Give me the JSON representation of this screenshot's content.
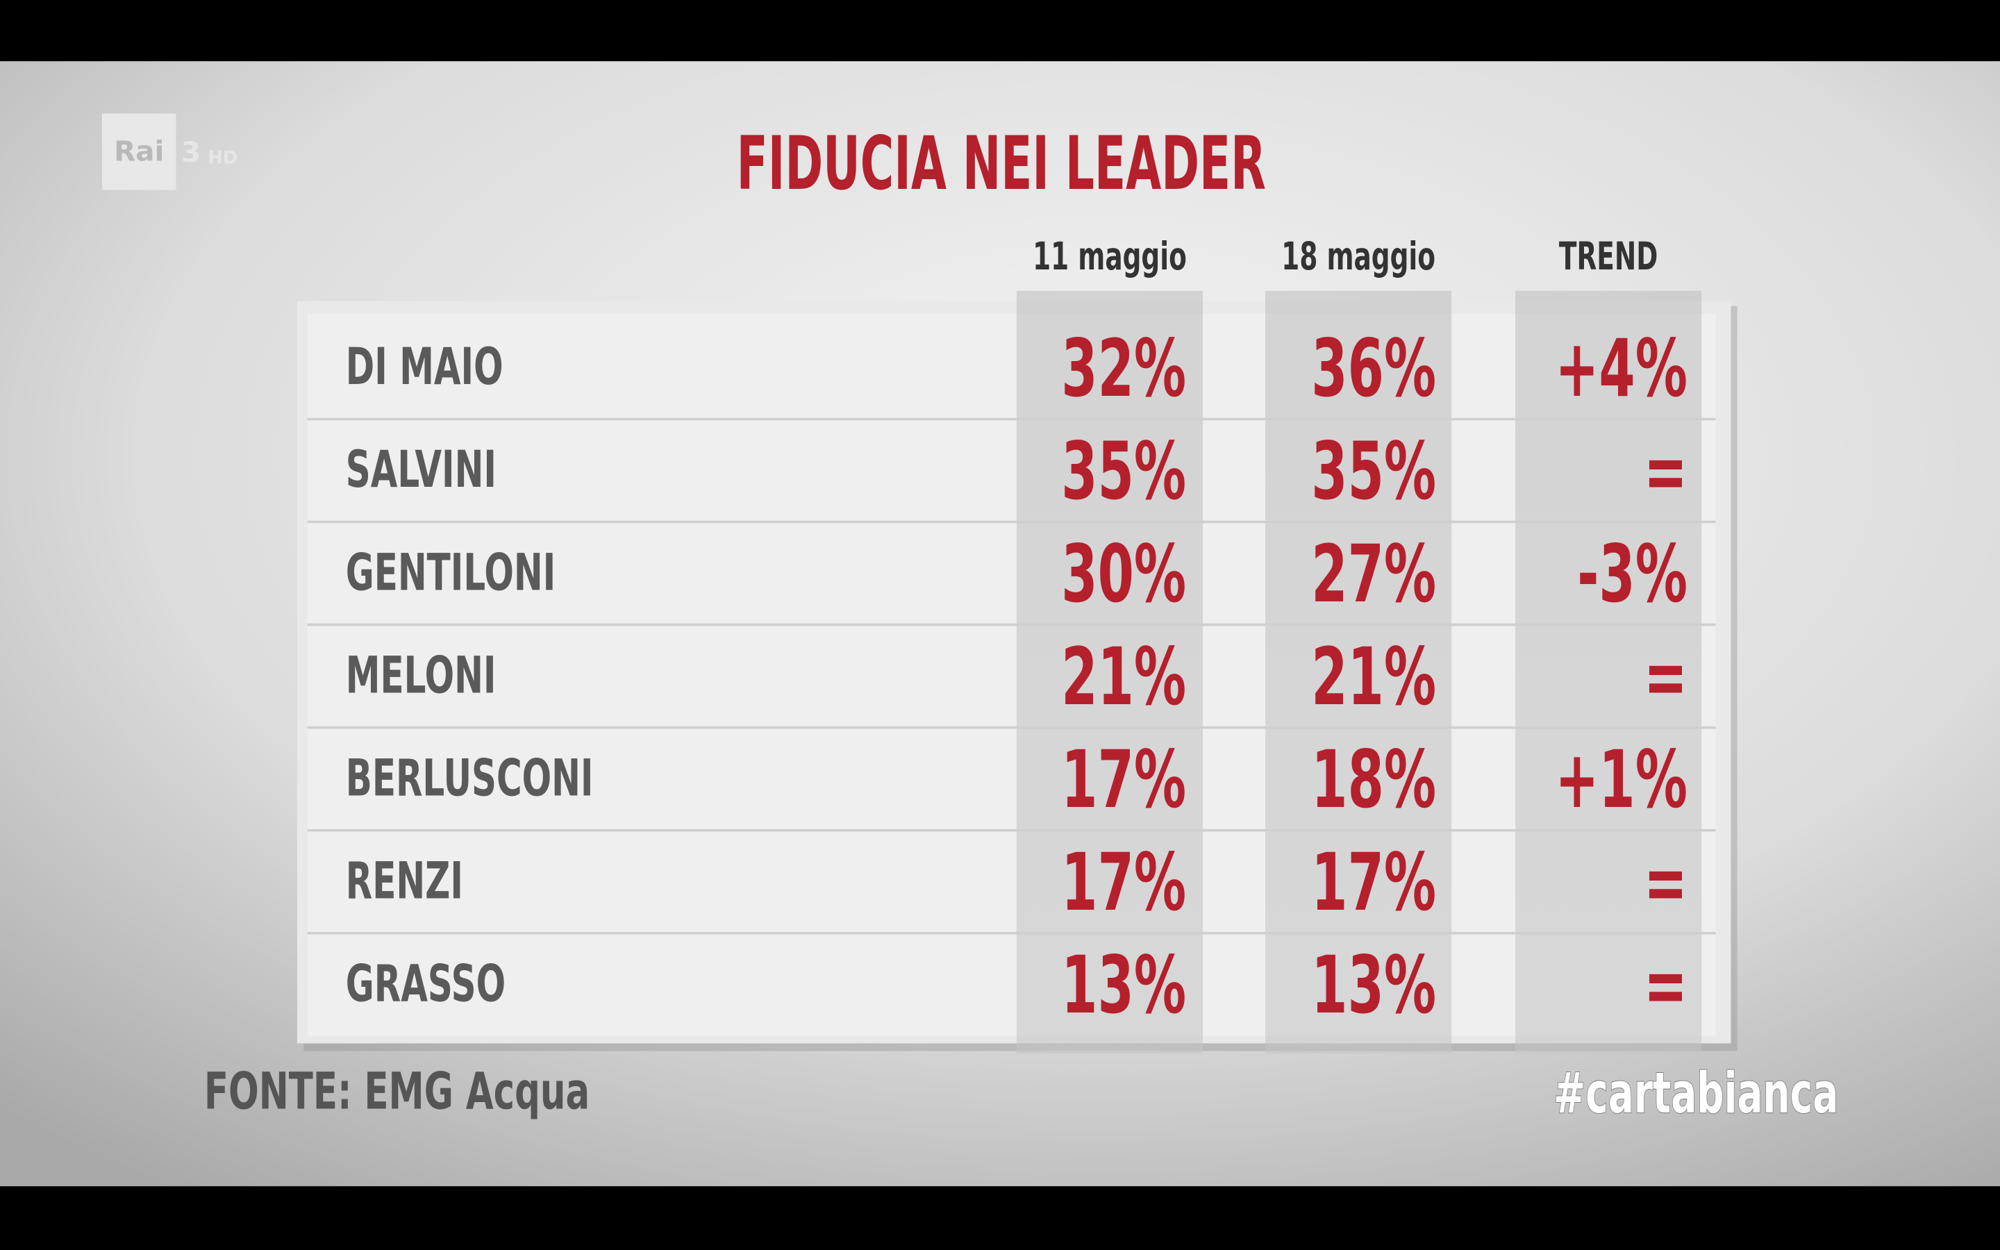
{
  "logo": {
    "name": "Rai",
    "channel": "3",
    "quality": "HD"
  },
  "title": "FIDUCIA NEI LEADER",
  "table": {
    "columns": [
      "11 maggio",
      "18 maggio",
      "TREND"
    ],
    "rows": [
      [
        "DI MAIO",
        "32%",
        "36%",
        "+4%"
      ],
      [
        "SALVINI",
        "35%",
        "35%",
        "="
      ],
      [
        "GENTILONI",
        "30%",
        "27%",
        "-3%"
      ],
      [
        "MELONI",
        "21%",
        "21%",
        "="
      ],
      [
        "BERLUSCONI",
        "17%",
        "18%",
        "+1%"
      ],
      [
        "RENZI",
        "17%",
        "17%",
        "="
      ],
      [
        "GRASSO",
        "13%",
        "13%",
        "="
      ]
    ]
  },
  "source": "FONTE: EMG Acqua",
  "hashtag": "#cartabianca"
}
